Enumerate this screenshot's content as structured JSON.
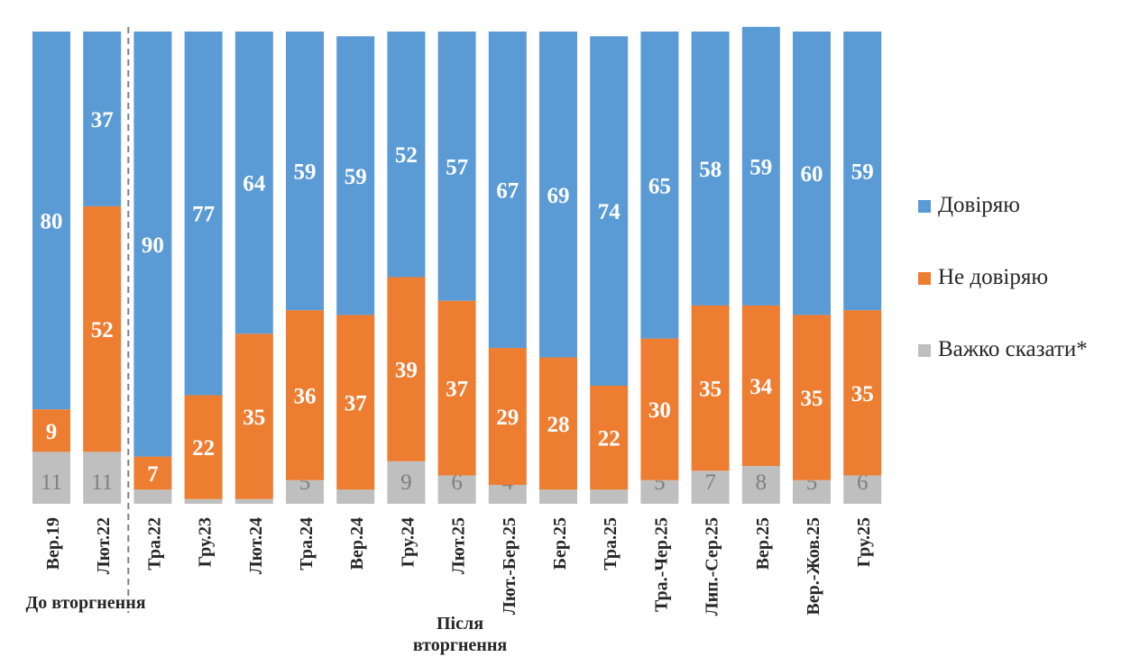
{
  "chart_data": {
    "type": "bar",
    "stacked": true,
    "normalized_percent": true,
    "categories": [
      "Вер.19",
      "Лют.22",
      "Тра.22",
      "Гру.23",
      "Лют.24",
      "Тра.24",
      "Вер.24",
      "Гру.24",
      "Лют.25",
      "Лют.-Бер.25",
      "Бер.25",
      "Тра.25",
      "Тра.-Чер.25",
      "Лип.-Сер.25",
      "Вер.25",
      "Вер.-Жов.25",
      "Гру.25"
    ],
    "series": [
      {
        "name": "Важко сказати*",
        "color": "#bfbfbf",
        "label_color": "#7f7f7f",
        "values": [
          11,
          11,
          3,
          1,
          1,
          5,
          3,
          9,
          6,
          4,
          3,
          3,
          5,
          7,
          8,
          5,
          6
        ]
      },
      {
        "name": "Не довіряю",
        "color": "#ed7d31",
        "label_color": "#ffffff",
        "values": [
          9,
          52,
          7,
          22,
          35,
          36,
          37,
          39,
          37,
          29,
          28,
          22,
          30,
          35,
          34,
          35,
          35
        ]
      },
      {
        "name": "Довіряю",
        "color": "#5b9bd5",
        "label_color": "#ffffff",
        "values": [
          80,
          37,
          90,
          77,
          64,
          59,
          59,
          52,
          57,
          67,
          69,
          74,
          65,
          58,
          59,
          60,
          59
        ]
      }
    ],
    "groups": [
      {
        "label": "До вторгнення",
        "categories": [
          "Вер.19",
          "Лют.22"
        ]
      },
      {
        "label": "Після вторгнення",
        "categories": [
          "Тра.22",
          "Гру.23",
          "Лют.24",
          "Тра.24",
          "Вер.24",
          "Гру.24",
          "Лют.25",
          "Лют.-Бер.25",
          "Бер.25",
          "Тра.25",
          "Тра.-Чер.25",
          "Лип.-Сер.25",
          "Вер.25",
          "Вер.-Жов.25",
          "Гру.25"
        ]
      }
    ],
    "divider_after_category": "Лют.22",
    "legend_position": "right",
    "grid": false
  },
  "legend": [
    {
      "label": "Довіряю",
      "color": "#5b9bd5"
    },
    {
      "label": "Не довіряю",
      "color": "#ed7d31"
    },
    {
      "label": "Важко сказати*",
      "color": "#bfbfbf"
    }
  ],
  "groups_text": {
    "before": "До вторгнення",
    "after": "Після вторгнення"
  }
}
